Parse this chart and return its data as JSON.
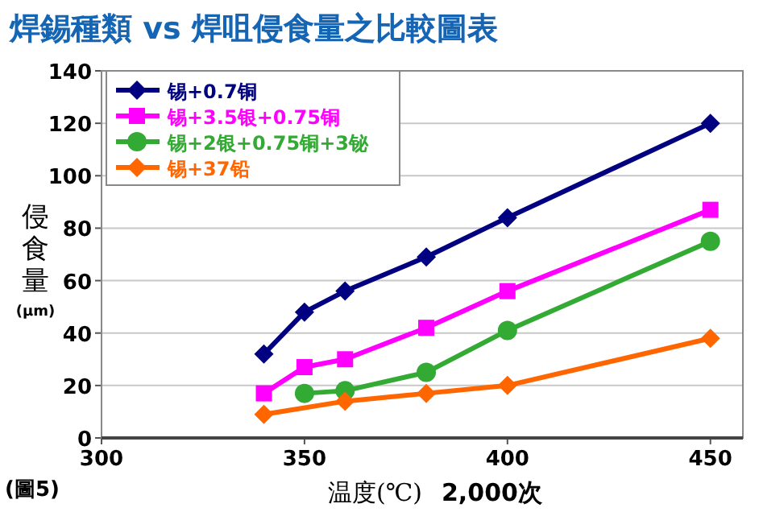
{
  "chart_data": {
    "type": "line",
    "title": "焊錫種類 vs 焊咀侵食量之比較圖表",
    "xlabel": "温度(℃)",
    "ylabel": "侵食量(μm)",
    "annotations": [
      "(圖5)",
      "2,000次"
    ],
    "xlim": [
      300,
      458
    ],
    "xticks": [
      300,
      350,
      400,
      450
    ],
    "ylim": [
      0,
      140
    ],
    "yticks": [
      0,
      20,
      40,
      60,
      80,
      100,
      120,
      140
    ],
    "grid": "y",
    "legend": "top left",
    "line_style": "solid",
    "series": [
      {
        "name": "锡+0.7铜",
        "color": "#000080",
        "marker": "diamond",
        "x": [
          340,
          350,
          360,
          380,
          400,
          450
        ],
        "values": [
          32,
          48,
          56,
          69,
          84,
          120
        ]
      },
      {
        "name": "锡+3.5银+0.75铜",
        "color": "#ff00ff",
        "marker": "square",
        "x": [
          340,
          350,
          360,
          380,
          400,
          450
        ],
        "values": [
          17,
          27,
          30,
          42,
          56,
          87
        ]
      },
      {
        "name": "锡+2银+0.75铜+3铋",
        "color": "#33aa33",
        "marker": "circle",
        "x": [
          350,
          360,
          380,
          400,
          450
        ],
        "values": [
          17,
          18,
          25,
          41,
          75
        ]
      },
      {
        "name": "锡+37铅",
        "color": "#ff6600",
        "marker": "diamond",
        "x": [
          340,
          360,
          380,
          400,
          450
        ],
        "values": [
          9,
          14,
          17,
          20,
          38
        ]
      }
    ]
  }
}
